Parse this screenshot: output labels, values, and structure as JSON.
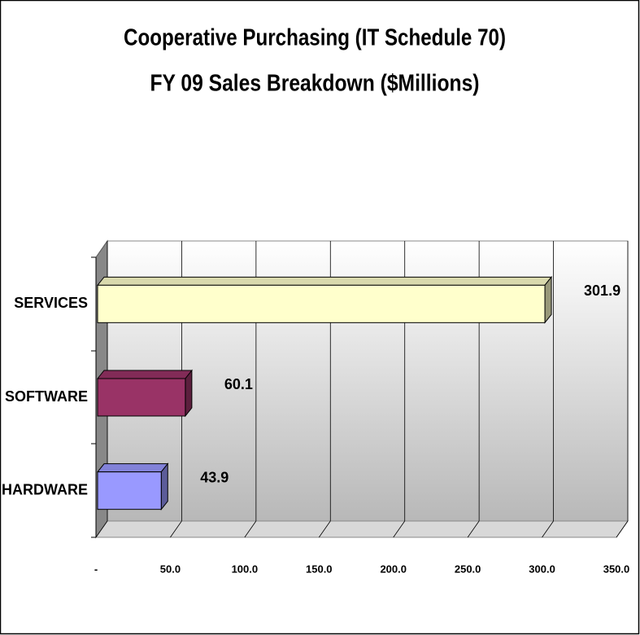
{
  "chart_data": {
    "type": "bar3d_horizontal",
    "title": "Cooperative Purchasing (IT Schedule 70)",
    "subtitle": "FY 09 Sales Breakdown ($Millions)",
    "categories": [
      "HARDWARE",
      "SOFTWARE",
      "SERVICES"
    ],
    "values": [
      43.9,
      60.1,
      301.9
    ],
    "colors": [
      "#9999ff",
      "#993366",
      "#ffffcc"
    ],
    "xlim": [
      0,
      350
    ],
    "xticks": [
      {
        "value": 0,
        "label": "-"
      },
      {
        "value": 50,
        "label": "50.0"
      },
      {
        "value": 100,
        "label": "100.0"
      },
      {
        "value": 150,
        "label": "150.0"
      },
      {
        "value": 200,
        "label": "200.0"
      },
      {
        "value": 250,
        "label": "250.0"
      },
      {
        "value": 300,
        "label": "300.0"
      },
      {
        "value": 350,
        "label": "350.0"
      }
    ],
    "grid": true
  }
}
